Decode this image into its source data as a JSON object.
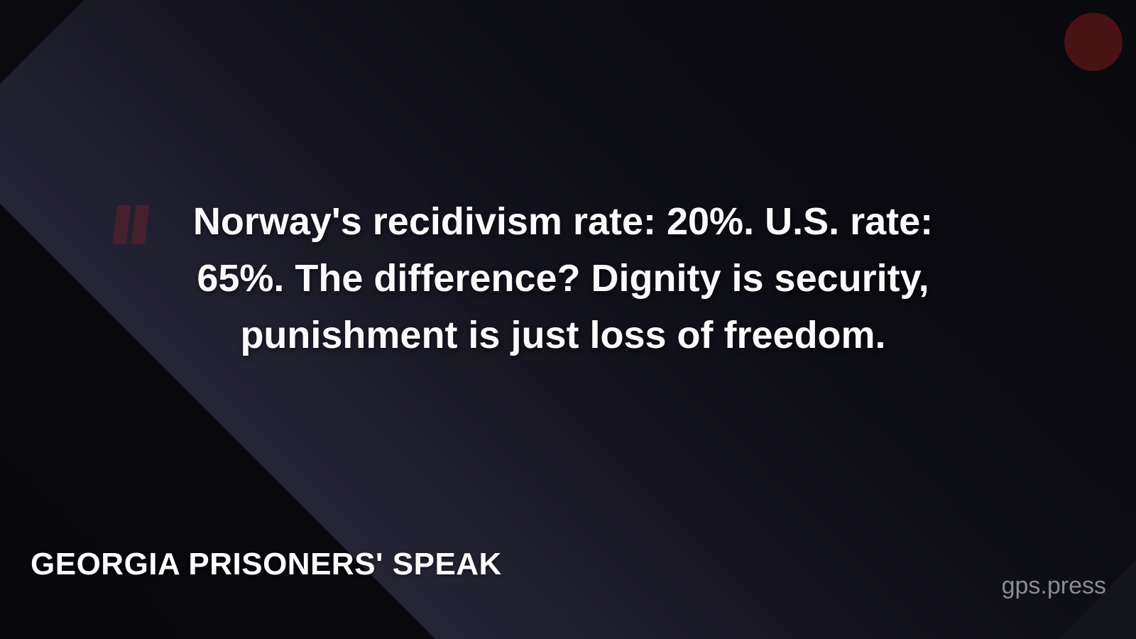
{
  "card": {
    "quote": {
      "full_text": "Norway's recidivism rate: 20%. U.S. rate: 65%. The difference? Dignity is security, punishment is just loss of freedom.",
      "lines": [
        "Norway's recidivism rate: 20%. U.S. rate:",
        "65%. The difference? Dignity is security,",
        "punishment is just loss of freedom."
      ],
      "stats": {
        "norway_recidivism_rate": "20%",
        "us_recidivism_rate": "65%"
      }
    },
    "footer": {
      "brand": "GEORGIA PRISONERS' SPEAK",
      "website": "gps.press"
    },
    "icons": {
      "quote_mark": "double-quote-icon",
      "accent_circle": "filled-circle-icon"
    },
    "colors": {
      "quote_text": "#fafafa",
      "brand_text": "#ffffff",
      "website_text": "#8b8b92",
      "quote_mark": "#46202d",
      "accent_circle": "#491313",
      "background_base": "#0b0b11",
      "background_band_light": "#323146",
      "background_dark_triangles": "#0a0a0f",
      "bottom_right_accent": "#14141d"
    }
  }
}
